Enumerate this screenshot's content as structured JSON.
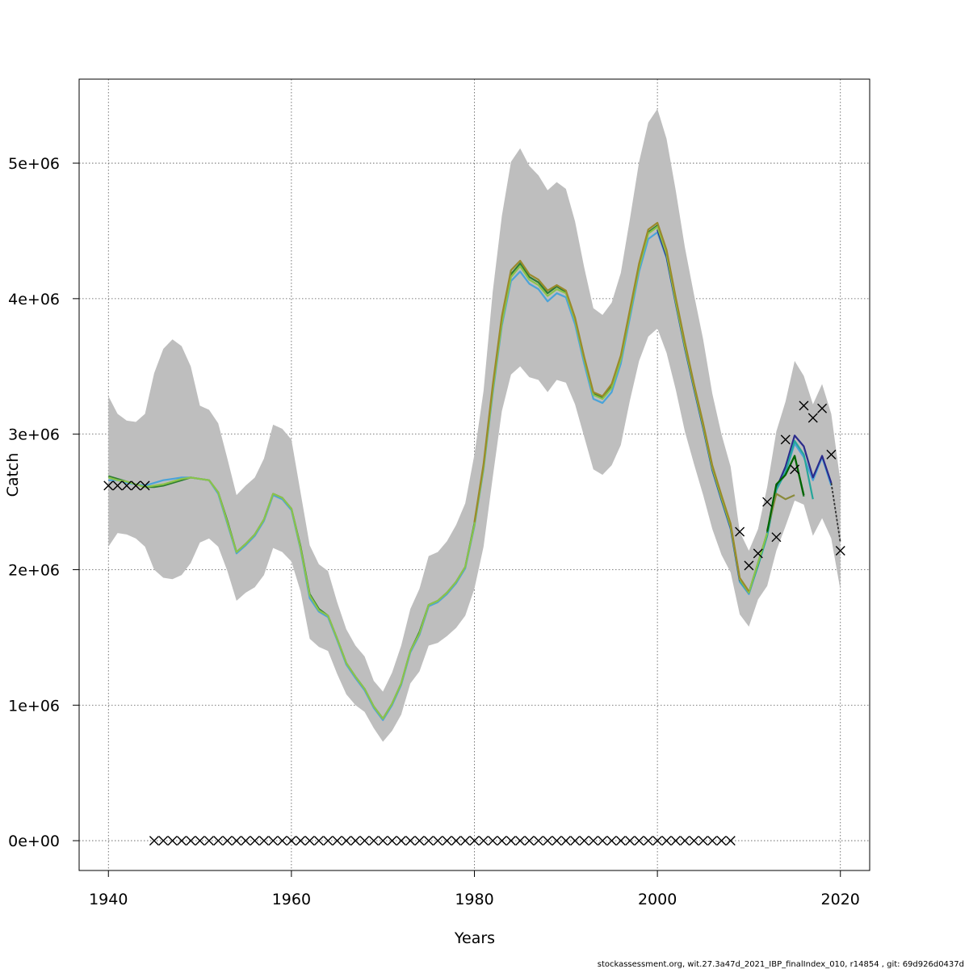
{
  "chart_data": {
    "type": "line",
    "xlabel": "Years",
    "ylabel": "Catch",
    "xlim": [
      1936.8,
      2023.2
    ],
    "ylim": [
      -220000,
      5620000
    ],
    "x_ticks": [
      1940,
      1960,
      1980,
      2000,
      2020
    ],
    "x_tick_labels": [
      "1940",
      "1960",
      "1980",
      "2000",
      "2020"
    ],
    "y_ticks": [
      0,
      1000000,
      2000000,
      3000000,
      4000000,
      5000000
    ],
    "y_tick_labels": [
      "0e+00",
      "1e+06",
      "2e+06",
      "3e+06",
      "4e+06",
      "5e+06"
    ],
    "grid": true,
    "band_color": "#bebebe",
    "confidence_band": {
      "x": [
        1940,
        1941,
        1942,
        1943,
        1944,
        1945,
        1946,
        1947,
        1948,
        1949,
        1950,
        1951,
        1952,
        1953,
        1954,
        1955,
        1956,
        1957,
        1958,
        1959,
        1960,
        1961,
        1962,
        1963,
        1964,
        1965,
        1966,
        1967,
        1968,
        1969,
        1970,
        1971,
        1972,
        1973,
        1974,
        1975,
        1976,
        1977,
        1978,
        1979,
        1980,
        1981,
        1982,
        1983,
        1984,
        1985,
        1986,
        1987,
        1988,
        1989,
        1990,
        1991,
        1992,
        1993,
        1994,
        1995,
        1996,
        1997,
        1998,
        1999,
        2000,
        2001,
        2002,
        2003,
        2004,
        2005,
        2006,
        2007,
        2008,
        2009,
        2010,
        2011,
        2012,
        2013,
        2014,
        2015,
        2016,
        2017,
        2018,
        2019,
        2020
      ],
      "upper": [
        3280000,
        3150000,
        3100000,
        3090000,
        3150000,
        3450000,
        3630000,
        3700000,
        3650000,
        3500000,
        3210000,
        3180000,
        3080000,
        2820000,
        2550000,
        2620000,
        2680000,
        2820000,
        3070000,
        3040000,
        2960000,
        2570000,
        2180000,
        2040000,
        1990000,
        1760000,
        1560000,
        1440000,
        1360000,
        1180000,
        1100000,
        1240000,
        1440000,
        1710000,
        1860000,
        2100000,
        2130000,
        2210000,
        2330000,
        2490000,
        2850000,
        3320000,
        4050000,
        4610000,
        5010000,
        5110000,
        4980000,
        4910000,
        4800000,
        4860000,
        4810000,
        4570000,
        4230000,
        3930000,
        3880000,
        3970000,
        4190000,
        4590000,
        5010000,
        5300000,
        5400000,
        5180000,
        4800000,
        4380000,
        4030000,
        3700000,
        3300000,
        3000000,
        2760000,
        2280000,
        2140000,
        2300000,
        2610000,
        3020000,
        3240000,
        3540000,
        3430000,
        3220000,
        3370000,
        3150000,
        2650000
      ],
      "lower": [
        2170000,
        2270000,
        2260000,
        2230000,
        2170000,
        2000000,
        1940000,
        1930000,
        1960000,
        2050000,
        2200000,
        2230000,
        2170000,
        1990000,
        1770000,
        1830000,
        1870000,
        1960000,
        2160000,
        2130000,
        2060000,
        1840000,
        1490000,
        1430000,
        1400000,
        1230000,
        1080000,
        1000000,
        950000,
        830000,
        730000,
        810000,
        930000,
        1160000,
        1250000,
        1440000,
        1460000,
        1510000,
        1570000,
        1660000,
        1860000,
        2170000,
        2680000,
        3170000,
        3440000,
        3500000,
        3420000,
        3400000,
        3310000,
        3400000,
        3380000,
        3220000,
        2980000,
        2740000,
        2700000,
        2770000,
        2920000,
        3250000,
        3540000,
        3720000,
        3780000,
        3600000,
        3330000,
        3020000,
        2780000,
        2550000,
        2300000,
        2110000,
        1980000,
        1670000,
        1580000,
        1780000,
        1880000,
        2140000,
        2320000,
        2510000,
        2480000,
        2250000,
        2380000,
        2230000,
        1850000
      ]
    },
    "series": [
      {
        "color": "#2e7d32",
        "x": [
          1940,
          1941,
          1942,
          1943,
          1944,
          1945,
          1946,
          1947,
          1948,
          1949,
          1950,
          1951,
          1952,
          1953,
          1954,
          1955,
          1956,
          1957,
          1958,
          1959,
          1960,
          1961,
          1962,
          1963,
          1964,
          1965,
          1966,
          1967,
          1968,
          1969,
          1970,
          1971,
          1972,
          1973,
          1974,
          1975,
          1976,
          1977,
          1978,
          1979,
          1980,
          1981,
          1982,
          1983,
          1984,
          1985,
          1986,
          1987,
          1988,
          1989,
          1990,
          1991,
          1992,
          1993,
          1994,
          1995,
          1996,
          1997,
          1998,
          1999,
          2000,
          2001,
          2002,
          2003,
          2004,
          2005,
          2006,
          2007,
          2008,
          2009,
          2010,
          2011,
          2012,
          2013,
          2014,
          2015,
          2016
        ],
        "values": [
          2690000,
          2670000,
          2650000,
          2630000,
          2610000,
          2610000,
          2620000,
          2640000,
          2660000,
          2680000,
          2670000,
          2660000,
          2570000,
          2360000,
          2130000,
          2190000,
          2260000,
          2370000,
          2560000,
          2530000,
          2450000,
          2170000,
          1820000,
          1710000,
          1660000,
          1490000,
          1310000,
          1210000,
          1120000,
          990000,
          900000,
          1010000,
          1160000,
          1400000,
          1540000,
          1740000,
          1770000,
          1830000,
          1910000,
          2020000,
          2340000,
          2760000,
          3340000,
          3840000,
          4180000,
          4260000,
          4160000,
          4120000,
          4040000,
          4090000,
          4050000,
          3850000,
          3560000,
          3300000,
          3270000,
          3350000,
          3560000,
          3900000,
          4240000,
          4490000,
          4540000,
          4340000,
          3990000,
          3660000,
          3360000,
          3070000,
          2760000,
          2540000,
          2330000,
          1930000,
          1830000,
          2050000,
          2270000,
          2620000,
          2700000,
          2840000,
          2540000
        ]
      },
      {
        "color": "#4aa3d9",
        "x": [
          1940,
          1941,
          1942,
          1943,
          1944,
          1945,
          1946,
          1947,
          1948,
          1949,
          1950,
          1951,
          1952,
          1953,
          1954,
          1955,
          1956,
          1957,
          1958,
          1959,
          1960,
          1961,
          1962,
          1963,
          1964,
          1965,
          1966,
          1967,
          1968,
          1969,
          1970,
          1971,
          1972,
          1973,
          1974,
          1975,
          1976,
          1977,
          1978,
          1979,
          1980,
          1981,
          1982,
          1983,
          1984,
          1985,
          1986,
          1987,
          1988,
          1989,
          1990,
          1991,
          1992,
          1993,
          1994,
          1995,
          1996,
          1997,
          1998,
          1999,
          2000,
          2001,
          2002,
          2003,
          2004,
          2005,
          2006,
          2007,
          2008,
          2009,
          2010,
          2011,
          2012,
          2013,
          2014,
          2015,
          2016,
          2017,
          2018,
          2019
        ],
        "values": [
          2660000,
          2660000,
          2640000,
          2630000,
          2620000,
          2640000,
          2660000,
          2670000,
          2680000,
          2680000,
          2670000,
          2660000,
          2560000,
          2340000,
          2120000,
          2180000,
          2250000,
          2360000,
          2550000,
          2520000,
          2440000,
          2150000,
          1790000,
          1690000,
          1650000,
          1480000,
          1300000,
          1200000,
          1110000,
          980000,
          890000,
          1000000,
          1150000,
          1390000,
          1520000,
          1730000,
          1760000,
          1820000,
          1900000,
          2010000,
          2320000,
          2740000,
          3300000,
          3800000,
          4130000,
          4200000,
          4110000,
          4070000,
          3980000,
          4040000,
          4010000,
          3810000,
          3520000,
          3260000,
          3230000,
          3310000,
          3520000,
          3860000,
          4200000,
          4440000,
          4490000,
          4300000,
          3960000,
          3630000,
          3330000,
          3040000,
          2730000,
          2510000,
          2300000,
          1910000,
          1820000,
          2030000,
          2260000,
          2590000,
          2720000,
          2930000,
          2830000,
          2660000,
          2830000,
          2620000
        ]
      },
      {
        "color": "#2b2b8c",
        "x": [
          2000,
          2001,
          2002,
          2003,
          2004,
          2005,
          2006,
          2007,
          2008,
          2009,
          2010,
          2011,
          2012,
          2013,
          2014,
          2015,
          2016,
          2017,
          2018,
          2019
        ],
        "values": [
          4510000,
          4310000,
          3970000,
          3640000,
          3340000,
          3050000,
          2740000,
          2520000,
          2310000,
          1920000,
          1830000,
          2040000,
          2260000,
          2600000,
          2760000,
          2990000,
          2910000,
          2680000,
          2840000,
          2640000
        ]
      },
      {
        "color": "#26a69a",
        "x": [
          2009,
          2010,
          2011,
          2012,
          2013,
          2014,
          2015,
          2016,
          2017
        ],
        "values": [
          1920000,
          1830000,
          2030000,
          2250000,
          2590000,
          2720000,
          2950000,
          2850000,
          2520000
        ]
      },
      {
        "color": "#8a8a3a",
        "x": [
          2012,
          2013,
          2014,
          2015
        ],
        "values": [
          2290000,
          2560000,
          2520000,
          2550000
        ]
      },
      {
        "color": "#006400",
        "x": [
          2012,
          2013,
          2014,
          2015,
          2016
        ],
        "values": [
          2280000,
          2630000,
          2700000,
          2840000,
          2550000
        ]
      },
      {
        "color": "#8bc34a",
        "x": [
          1940,
          1941,
          1942,
          1943,
          1944,
          1945,
          1946,
          1947,
          1948,
          1949,
          1950,
          1951,
          1952,
          1953,
          1954,
          1955,
          1956,
          1957,
          1958,
          1959,
          1960,
          1961,
          1962,
          1963,
          1964,
          1965,
          1966,
          1967,
          1968,
          1969,
          1970,
          1971,
          1972,
          1973,
          1974,
          1975,
          1976,
          1977,
          1978,
          1979,
          1980,
          1981,
          1982,
          1983,
          1984,
          1985,
          1986,
          1987,
          1988,
          1989,
          1990,
          1991,
          1992,
          1993,
          1994,
          1995,
          1996,
          1997,
          1998,
          1999,
          2000,
          2001,
          2002,
          2003,
          2004,
          2005,
          2006,
          2007,
          2008,
          2009,
          2010,
          2011,
          2012
        ],
        "values": [
          2680000,
          2660000,
          2650000,
          2630000,
          2610000,
          2620000,
          2630000,
          2650000,
          2670000,
          2680000,
          2670000,
          2660000,
          2570000,
          2350000,
          2130000,
          2190000,
          2260000,
          2370000,
          2560000,
          2530000,
          2450000,
          2160000,
          1810000,
          1700000,
          1660000,
          1490000,
          1310000,
          1210000,
          1120000,
          990000,
          900000,
          1010000,
          1160000,
          1400000,
          1530000,
          1740000,
          1770000,
          1830000,
          1910000,
          2020000,
          2330000,
          2750000,
          3320000,
          3820000,
          4160000,
          4240000,
          4140000,
          4100000,
          4020000,
          4070000,
          4040000,
          3840000,
          3550000,
          3290000,
          3260000,
          3340000,
          3550000,
          3890000,
          4230000,
          4480000,
          4530000,
          4330000,
          3980000,
          3650000,
          3350000,
          3060000,
          2750000,
          2530000,
          2320000,
          1930000,
          1830000,
          2050000,
          2270000
        ]
      },
      {
        "color": "#9a8a2a",
        "x": [
          1980,
          1981,
          1982,
          1983,
          1984,
          1985,
          1986,
          1987,
          1988,
          1989,
          1990,
          1991,
          1992,
          1993,
          1994,
          1995,
          1996,
          1997,
          1998,
          1999,
          2000,
          2001,
          2002,
          2003,
          2004,
          2005,
          2006,
          2007,
          2008,
          2009,
          2010
        ],
        "values": [
          2350000,
          2780000,
          3360000,
          3870000,
          4210000,
          4280000,
          4180000,
          4140000,
          4060000,
          4100000,
          4060000,
          3860000,
          3570000,
          3310000,
          3280000,
          3370000,
          3580000,
          3920000,
          4260000,
          4510000,
          4560000,
          4360000,
          4010000,
          3680000,
          3370000,
          3080000,
          2770000,
          2550000,
          2340000,
          1940000,
          1840000
        ]
      },
      {
        "color": "#333333",
        "dashed": true,
        "x": [
          2019,
          2020
        ],
        "values": [
          2640000,
          2200000
        ]
      }
    ],
    "observations": {
      "marker": "x",
      "x": [
        1940,
        1941,
        1942,
        1943,
        1944,
        1945,
        1946,
        1947,
        1948,
        1949,
        1950,
        1951,
        1952,
        1953,
        1954,
        1955,
        1956,
        1957,
        1958,
        1959,
        1960,
        1961,
        1962,
        1963,
        1964,
        1965,
        1966,
        1967,
        1968,
        1969,
        1970,
        1971,
        1972,
        1973,
        1974,
        1975,
        1976,
        1977,
        1978,
        1979,
        1980,
        1981,
        1982,
        1983,
        1984,
        1985,
        1986,
        1987,
        1988,
        1989,
        1990,
        1991,
        1992,
        1993,
        1994,
        1995,
        1996,
        1997,
        1998,
        1999,
        2000,
        2001,
        2002,
        2003,
        2004,
        2005,
        2006,
        2007,
        2008,
        2009,
        2010,
        2011,
        2012,
        2013,
        2014,
        2015,
        2016,
        2017,
        2018,
        2019,
        2020
      ],
      "y": [
        2620000,
        2620000,
        2620000,
        2620000,
        2620000,
        0,
        0,
        0,
        0,
        0,
        0,
        0,
        0,
        0,
        0,
        0,
        0,
        0,
        0,
        0,
        0,
        0,
        0,
        0,
        0,
        0,
        0,
        0,
        0,
        0,
        0,
        0,
        0,
        0,
        0,
        0,
        0,
        0,
        0,
        0,
        0,
        0,
        0,
        0,
        0,
        0,
        0,
        0,
        0,
        0,
        0,
        0,
        0,
        0,
        0,
        0,
        0,
        0,
        0,
        0,
        0,
        0,
        0,
        0,
        0,
        0,
        0,
        0,
        0,
        2280000,
        2030000,
        2120000,
        2500000,
        2240000,
        2960000,
        2740000,
        3210000,
        3120000,
        3190000,
        2850000,
        2140000
      ]
    }
  },
  "footer": "stockassessment.org, wit.27.3a47d_2021_IBP_finalIndex_010, r14854 , git: 69d926d0437d"
}
